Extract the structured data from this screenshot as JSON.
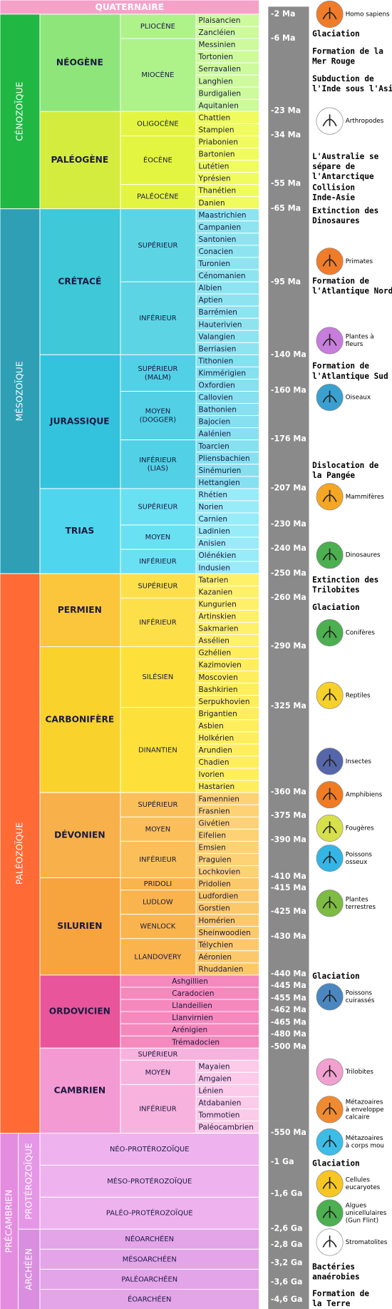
{
  "quaternary": {
    "name": "QUATERNAIRE",
    "color": "#f5a2c9"
  },
  "eras": [
    {
      "name": "CÉNOZOÏQUE",
      "color": "#20b843",
      "periods": [
        {
          "name": "NÉOGÈNE",
          "colors": [
            "#8ee67a",
            "#aef28a",
            "#cdfa9c"
          ],
          "epochs": [
            {
              "lines": [
                "PLIOCÈNE"
              ],
              "stages": [
                "Plaisancien",
                "Zancléien"
              ]
            },
            {
              "lines": [
                "MIOCÈNE"
              ],
              "stages": [
                "Messinien",
                "Tortonien",
                "Serravalien",
                "Langhien",
                "Burdigalien",
                "Aquitanien"
              ]
            }
          ]
        },
        {
          "name": "PALÉOGÈNE",
          "colors": [
            "#d4ec3e",
            "#e4f541",
            "#f0fb5e"
          ],
          "epochs": [
            {
              "lines": [
                "OLIGOCÈNE"
              ],
              "stages": [
                "Chattien",
                "Stampien"
              ]
            },
            {
              "lines": [
                "ÉOCÈNE"
              ],
              "stages": [
                "Priabonien",
                "Bartonien",
                "Lutétien",
                "Yprésien"
              ]
            },
            {
              "lines": [
                "PALÉOCÈNE"
              ],
              "stages": [
                "Thanétien",
                "Danien"
              ]
            }
          ]
        }
      ]
    },
    {
      "name": "MÉSOZOÏQUE",
      "color": "#2f9fb5",
      "periods": [
        {
          "name": "CRÉTACÉ",
          "colors": [
            "#3ec8d8",
            "#5dd4e4",
            "#8de4f0"
          ],
          "epochs": [
            {
              "lines": [
                "SUPÉRIEUR"
              ],
              "stages": [
                "Maastrichien",
                "Campanien",
                "Santonien",
                "Conacien",
                "Turonien",
                "Cénomanien"
              ]
            },
            {
              "lines": [
                "INFÉRIEUR"
              ],
              "stages": [
                "Albien",
                "Aptien",
                "Barrémien",
                "Hauterivien",
                "Valangien",
                "Berriasien"
              ]
            }
          ]
        },
        {
          "name": "JURASSIQUE",
          "colors": [
            "#33c3dd",
            "#52d0e6",
            "#86e0f0"
          ],
          "epochs": [
            {
              "lines": [
                "SUPÉRIEUR",
                "(MALM)"
              ],
              "stages": [
                "Tithonien",
                "Kimmérigien",
                "Oxfordien"
              ]
            },
            {
              "lines": [
                "MOYEN",
                "(DOGGER)"
              ],
              "stages": [
                "Callovien",
                "Bathonien",
                "Bajocien",
                "Aalénien"
              ]
            },
            {
              "lines": [
                "INFÉRIEUR",
                "(LIAS)"
              ],
              "stages": [
                "Toarcien",
                "Pliensbachien",
                "Sinémurien",
                "Hettangien"
              ]
            }
          ]
        },
        {
          "name": "TRIAS",
          "colors": [
            "#4fd6ee",
            "#6ae0f3",
            "#98ebf8"
          ],
          "epochs": [
            {
              "lines": [
                "SUPÉRIEUR"
              ],
              "stages": [
                "Rhétien",
                "Norien",
                "Carnien"
              ]
            },
            {
              "lines": [
                "MOYEN"
              ],
              "stages": [
                "Ladinien",
                "Anisien"
              ]
            },
            {
              "lines": [
                "INFÉRIEUR"
              ],
              "stages": [
                "Olénékien",
                "Indusien"
              ]
            }
          ]
        }
      ]
    },
    {
      "name": "PALÉOZOÏQUE",
      "color": "#ff6a35",
      "periods": [
        {
          "name": "PERMIEN",
          "colors": [
            "#fbc63c",
            "#fde049",
            "#fff06a"
          ],
          "epochs": [
            {
              "lines": [
                "SUPÉRIEUR"
              ],
              "stages": [
                "Tatarien",
                "Kazanien"
              ]
            },
            {
              "lines": [
                "INFÉRIEUR"
              ],
              "stages": [
                "Kungurien",
                "Artinskien",
                "Sakmarien",
                "Assélien"
              ]
            }
          ]
        },
        {
          "name": "CARBONIFÈRE",
          "colors": [
            "#f9d22c",
            "#fde13a",
            "#feee5c"
          ],
          "epochs": [
            {
              "lines": [
                "SILÉSIEN"
              ],
              "stages": [
                "Gzhélien",
                "Kazimovien",
                "Moscovien",
                "Bashkirien",
                "Serpukhovien"
              ]
            },
            {
              "lines": [
                "DINANTIEN"
              ],
              "stages": [
                "Brigantien",
                "Asbien",
                "Holkérien",
                "Arundien",
                "Chadien",
                "Ivorien",
                "Hastarien"
              ]
            }
          ]
        },
        {
          "name": "DÉVONIEN",
          "colors": [
            "#f8b04a",
            "#fbbf5a",
            "#fdd275"
          ],
          "epochs": [
            {
              "lines": [
                "SUPÉRIEUR"
              ],
              "stages": [
                "Famennien",
                "Frasnien"
              ]
            },
            {
              "lines": [
                "MOYEN"
              ],
              "stages": [
                "Givétien",
                "Eifelien"
              ]
            },
            {
              "lines": [
                "INFÉRIEUR"
              ],
              "stages": [
                "Emsien",
                "Praguien",
                "Lochkovien"
              ]
            }
          ]
        },
        {
          "name": "SILURIEN",
          "colors": [
            "#f7a33e",
            "#fab44e",
            "#fcc96a"
          ],
          "epochs": [
            {
              "lines": [
                "PRIDOLI"
              ],
              "stages": [
                "Pridolien"
              ]
            },
            {
              "lines": [
                "LUDLOW"
              ],
              "stages": [
                "Ludfordien",
                "Gorstien"
              ]
            },
            {
              "lines": [
                "WENLOCK"
              ],
              "stages": [
                "Homérien",
                "Sheinwoodien"
              ]
            },
            {
              "lines": [
                "LLANDOVERY"
              ],
              "stages": [
                "Télychien",
                "Aéronien",
                "Rhuddanien"
              ]
            }
          ]
        },
        {
          "name": "ORDOVICIEN",
          "colors": [
            "#e8559b",
            "#ef6fab",
            "#f588bd"
          ],
          "stages": [
            "Ashgillien",
            "Caradocien",
            "Llandeilien",
            "Llanvirnien",
            "Arénigien",
            "Trémadocien"
          ]
        },
        {
          "name": "CAMBRIEN",
          "colors": [
            "#f49ad2",
            "#f8b2de",
            "#fbcbe9"
          ],
          "epochs": [
            {
              "lines": [
                "SUPÉRIEUR"
              ],
              "stages": []
            },
            {
              "lines": [
                "MOYEN"
              ],
              "stages": [
                "Mayaien",
                "Amgaien"
              ]
            },
            {
              "lines": [
                "INFÉRIEUR"
              ],
              "stages": [
                "Lénien",
                "Atdabanien",
                "Tommotien",
                "Paléocambrien"
              ]
            }
          ]
        }
      ]
    }
  ],
  "precambrian": {
    "name": "PRÉCAMBRIEN",
    "color": "#e48de0",
    "eons": [
      {
        "name": "PROTÉROZOÏQUE",
        "colors": [
          "#e596e6",
          "#eeb3ee"
        ],
        "divisions": [
          "NÉO-PROTÉROZOÏQUE",
          "MÉSO-PROTÉROZOÏQUE",
          "PALÉO-PROTÉROZOÏQUE"
        ]
      },
      {
        "name": "ARCHÉEN",
        "colors": [
          "#d98ee0",
          "#e3a4e8"
        ],
        "divisions": [
          "NÉOARCHÉEN",
          "MÉSOARCHÉEN",
          "PALÉOARCHÉEN",
          "ÉOARCHÉEN"
        ]
      }
    ]
  },
  "ages": [
    "-2 Ma",
    "-6 Ma",
    "-23 Ma",
    "-34 Ma",
    "-55 Ma",
    "-65 Ma",
    "-95 Ma",
    "-140 Ma",
    "-160 Ma",
    "-176 Ma",
    "-207 Ma",
    "-230 Ma",
    "-240 Ma",
    "-250 Ma",
    "-260 Ma",
    "-290 Ma",
    "-325 Ma",
    "-360 Ma",
    "-375 Ma",
    "-390 Ma",
    "-410 Ma",
    "-415 Ma",
    "-425 Ma",
    "-430 Ma",
    "-440 Ma",
    "-445 Ma",
    "-455 Ma",
    "-462 Ma",
    "-465 Ma",
    "-480 Ma",
    "-500 Ma",
    "-550 Ma",
    "-1 Ga",
    "-1,6 Ga",
    "-2,6 Ga",
    "-2,8 Ga",
    "-3,2 Ga",
    "-3,6 Ga",
    "-4,6 Ga"
  ],
  "events": [
    {
      "lines": [
        "Glaciation"
      ]
    },
    {
      "lines": [
        "Formation de la",
        "Mer Rouge"
      ]
    },
    {
      "lines": [
        "Subduction de",
        "l'Inde sous l'Asie"
      ]
    },
    {
      "lines": [
        "L'Australie se",
        "sépare de",
        "l'Antarctique"
      ]
    },
    {
      "lines": [
        "Collision",
        "Inde-Asie"
      ]
    },
    {
      "lines": [
        "Extinction des",
        "Dinosaures"
      ]
    },
    {
      "lines": [
        "Formation de",
        "l'Atlantique Nord"
      ]
    },
    {
      "lines": [
        "Formation de",
        "l'Atlantique Sud"
      ]
    },
    {
      "lines": [
        "Dislocation de",
        "la Pangée"
      ]
    },
    {
      "lines": [
        "Extinction des",
        "Trilobites"
      ]
    },
    {
      "lines": [
        "Glaciation"
      ]
    },
    {
      "lines": [
        "Glaciation"
      ]
    },
    {
      "lines": [
        "Glaciation"
      ]
    },
    {
      "lines": [
        "Bactéries",
        "anaérobies"
      ]
    },
    {
      "lines": [
        "Formation de",
        "la Terre"
      ]
    }
  ],
  "fossils": [
    {
      "caption": [
        "Homo sapiens"
      ],
      "color": "#f07c2a"
    },
    {
      "caption": [
        "Arthropodes"
      ],
      "color": "#ffffff"
    },
    {
      "caption": [
        "Primates"
      ],
      "color": "#f07c2a"
    },
    {
      "caption": [
        "Plantes à",
        "fleurs"
      ],
      "color": "#c77ddb"
    },
    {
      "caption": [
        "Oiseaux"
      ],
      "color": "#3aa0d0"
    },
    {
      "caption": [
        "Mammifères"
      ],
      "color": "#f5a623"
    },
    {
      "caption": [
        "Dinosaures"
      ],
      "color": "#4caf50"
    },
    {
      "caption": [
        "Conifères"
      ],
      "color": "#4caf50"
    },
    {
      "caption": [
        "Reptiles"
      ],
      "color": "#f6d02b"
    },
    {
      "caption": [
        "Insectes"
      ],
      "color": "#5566aa"
    },
    {
      "caption": [
        "Amphibiens"
      ],
      "color": "#f07b22"
    },
    {
      "caption": [
        "Fougères"
      ],
      "color": "#d6e04a"
    },
    {
      "caption": [
        "Poissons",
        "osseux"
      ],
      "color": "#33b5e5"
    },
    {
      "caption": [
        "Plantes",
        "terrestres"
      ],
      "color": "#7dbb42"
    },
    {
      "caption": [
        "Poissons",
        "cuirassés"
      ],
      "color": "#4a87c0"
    },
    {
      "caption": [
        "Trilobites"
      ],
      "color": "#f2a0d0"
    },
    {
      "caption": [
        "Métazoaires",
        "à enveloppe",
        "calcaire"
      ],
      "color": "#f08a30"
    },
    {
      "caption": [
        "Métazoaires",
        "à corps mou"
      ],
      "color": "#3cbde8"
    },
    {
      "caption": [
        "Cellules",
        "eucaryotes"
      ],
      "color": "#f7c623"
    },
    {
      "caption": [
        "Algues",
        "unicellulaires",
        "(Gun Flint)"
      ],
      "color": "#4caf50"
    },
    {
      "caption": [
        "Stromatolites"
      ],
      "color": "#ffffff"
    }
  ]
}
